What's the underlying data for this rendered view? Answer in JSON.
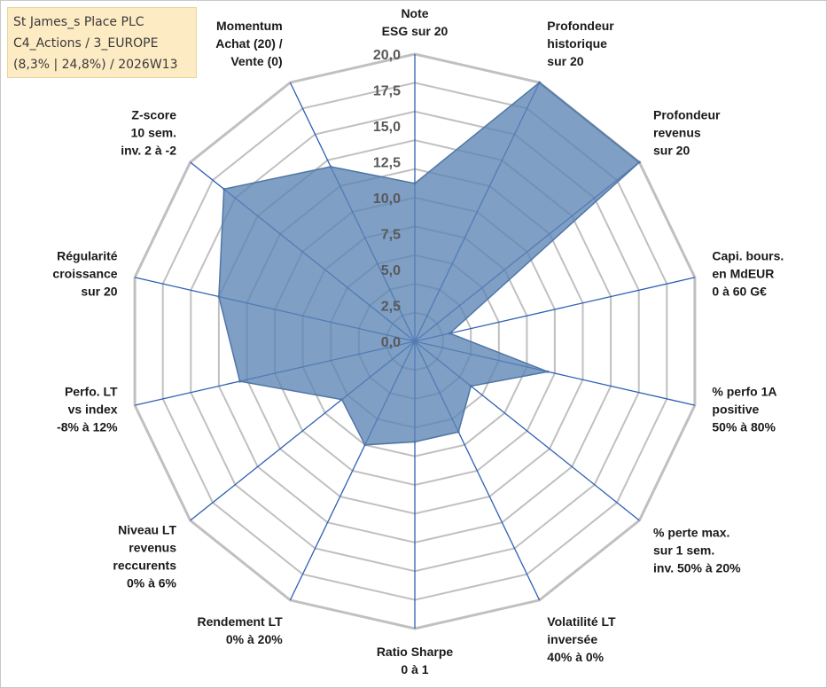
{
  "info_box": {
    "line1": "St James_s Place PLC",
    "line2": "C4_Actions / 3_EUROPE",
    "line3": "(8,3% | 24,8%) / 2026W13"
  },
  "colors": {
    "fill": "#5b84b5",
    "stroke": "#4f76a6",
    "axis": "#2e5fb4",
    "grid": "#c0c0c0"
  },
  "chart_data": {
    "type": "radar",
    "title": "",
    "range": [
      0,
      20
    ],
    "ticks": [
      "0,0",
      "2,5",
      "5,0",
      "7,5",
      "10,0",
      "12,5",
      "15,0",
      "17,5",
      "20,0"
    ],
    "grid_rings": 10,
    "axes": [
      {
        "label": [
          "Note",
          "ESG sur 20"
        ],
        "value": 11.0
      },
      {
        "label": [
          "Profondeur",
          "historique",
          "sur 20"
        ],
        "value": 20.0
      },
      {
        "label": [
          "Profondeur",
          "revenus",
          "sur 20"
        ],
        "value": 20.0
      },
      {
        "label": [
          "Capi. bours.",
          "en MdEUR",
          "0 à 60 G€"
        ],
        "value": 2.5
      },
      {
        "label": [
          "% perfo 1A",
          "positive",
          "50% à 80%"
        ],
        "value": 9.5
      },
      {
        "label": [
          "% perte max.",
          "sur 1 sem.",
          "inv. 50% à 20%"
        ],
        "value": 5.0
      },
      {
        "label": [
          "Volatilité LT",
          "inversée",
          "40% à 0%"
        ],
        "value": 7.0
      },
      {
        "label": [
          "Ratio Sharpe",
          "0 à 1"
        ],
        "value": 7.0
      },
      {
        "label": [
          "Rendement LT",
          "0% à 20%"
        ],
        "value": 8.0
      },
      {
        "label": [
          "Niveau LT",
          "revenus",
          "reccurents",
          "0% à 6%"
        ],
        "value": 6.5
      },
      {
        "label": [
          "Perfo. LT",
          "vs index",
          "-8% à 12%"
        ],
        "value": 12.5
      },
      {
        "label": [
          "Régularité",
          "croissance",
          "sur 20"
        ],
        "value": 14.0
      },
      {
        "label": [
          "Z-score",
          "10 sem.",
          "inv. 2 à -2"
        ],
        "value": 17.0
      },
      {
        "label": [
          "Momentum",
          "Achat (20) /",
          "Vente (0)"
        ],
        "value": 13.5
      }
    ]
  }
}
